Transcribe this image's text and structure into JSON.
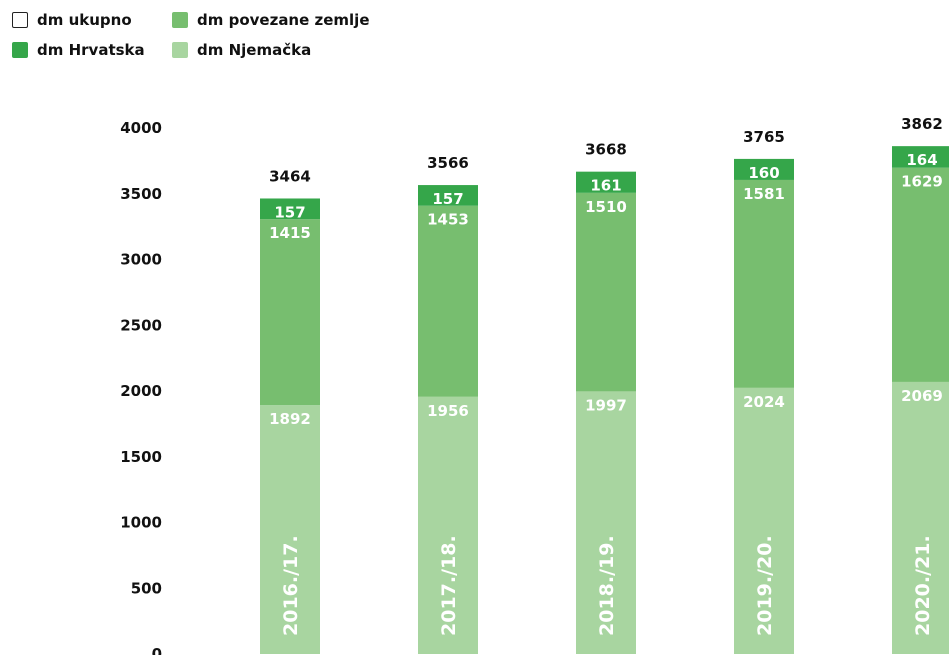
{
  "legend": {
    "items": [
      {
        "label": "dm ukupno",
        "color": "#ffffff",
        "outline": true
      },
      {
        "label": "dm povezane zemlje",
        "color": "#77be6f",
        "outline": false
      },
      {
        "label": "dm Hrvatska",
        "color": "#35a64a",
        "outline": false
      },
      {
        "label": "dm Njemačka",
        "color": "#a8d5a0",
        "outline": false
      }
    ]
  },
  "chart_data": {
    "type": "bar",
    "stacked": true,
    "title": "",
    "xlabel": "",
    "ylabel": "",
    "ylim": [
      0,
      4000
    ],
    "yticks": [
      0,
      500,
      1000,
      1500,
      2000,
      2500,
      3000,
      3500,
      4000
    ],
    "grid": false,
    "legend_position": "top-left",
    "categories": [
      "2016./17.",
      "2017./18.",
      "2018./19.",
      "2019./20.",
      "2020./21."
    ],
    "totals": {
      "name": "dm ukupno",
      "values": [
        3464,
        3566,
        3668,
        3765,
        3862
      ]
    },
    "series": [
      {
        "name": "dm Njemačka",
        "color": "#a8d5a0",
        "values": [
          1892,
          1956,
          1997,
          2024,
          2069
        ]
      },
      {
        "name": "dm povezane zemlje",
        "color": "#77be6f",
        "values": [
          1415,
          1453,
          1510,
          1581,
          1629
        ]
      },
      {
        "name": "dm Hrvatska",
        "color": "#35a64a",
        "values": [
          157,
          157,
          161,
          160,
          164
        ]
      }
    ]
  }
}
